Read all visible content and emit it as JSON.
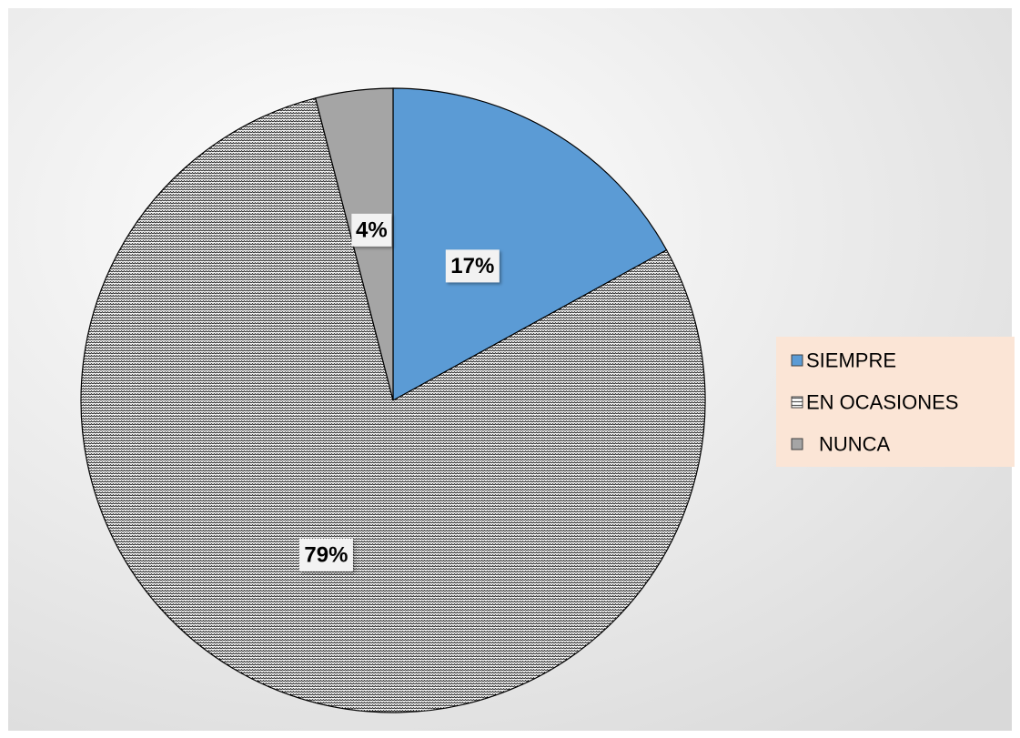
{
  "chart_data": {
    "type": "pie",
    "slices": [
      {
        "name": "SIEMPRE",
        "value": 17,
        "label": "17%",
        "color": "#5b9bd5",
        "pattern": "solid"
      },
      {
        "name": "EN OCASIONES",
        "value": 79,
        "label": "79%",
        "color": "#ffffff",
        "pattern": "zigzag"
      },
      {
        "name": "NUNCA",
        "value": 4,
        "label": "4%",
        "color": "#a5a5a5",
        "pattern": "solid"
      }
    ],
    "legend": {
      "position": "right",
      "items": [
        "SIEMPRE",
        "EN OCASIONES",
        "NUNCA"
      ],
      "background": "#fbe5d6"
    },
    "background_gradient": [
      "#ffffff",
      "#d9d9d9"
    ]
  }
}
